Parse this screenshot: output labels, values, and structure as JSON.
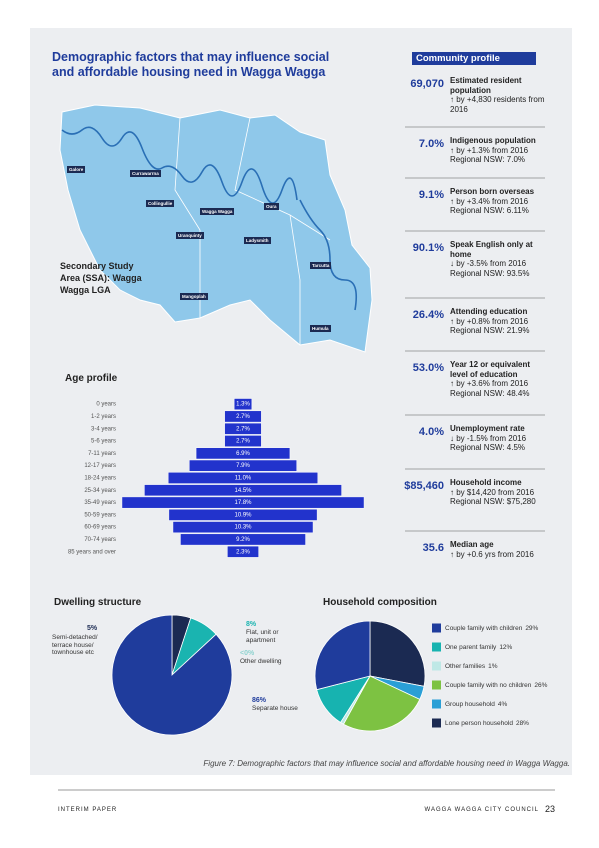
{
  "title": "Demographic factors that may influence social and affordable housing need in Wagga Wagga",
  "map": {
    "area_label": "Secondary Study Area (SSA): Wagga Wagga LGA",
    "places": [
      "Galore",
      "Currawarrna",
      "Collingullie",
      "Wagga Wagga",
      "Oura",
      "Uranquinty",
      "Ladysmith",
      "Tarcutta",
      "Mangoplah",
      "Humula"
    ]
  },
  "community_profile": {
    "title": "Community profile",
    "items": [
      {
        "value": "69,070",
        "label": "Estimated resident population",
        "details": [
          "↑ by +4,830 residents from 2016"
        ]
      },
      {
        "value": "7.0%",
        "label": "Indigenous population",
        "details": [
          "↑ by +1.3% from 2016",
          "Regional NSW: 7.0%"
        ]
      },
      {
        "value": "9.1%",
        "label": "Person born overseas",
        "details": [
          "↑ by +3.4% from 2016",
          "Regional NSW: 6.11%"
        ]
      },
      {
        "value": "90.1%",
        "label": "Speak English only at home",
        "details": [
          "↓ by -3.5% from 2016",
          "Regional NSW: 93.5%"
        ]
      },
      {
        "value": "26.4%",
        "label": "Attending education",
        "details": [
          "↑ by +0.8% from 2016",
          "Regional NSW: 21.9%"
        ]
      },
      {
        "value": "53.0%",
        "label": "Year 12 or equivalent level of education",
        "details": [
          "↑ by +3.6% from 2016",
          "Regional NSW: 48.4%"
        ]
      },
      {
        "value": "4.0%",
        "label": "Unemployment rate",
        "details": [
          "↓ by -1.5% from 2016",
          "Regional NSW: 4.5%"
        ]
      },
      {
        "value": "$85,460",
        "label": "Household income",
        "details": [
          "↑ by $14,420 from 2016 Regional NSW: $75,280"
        ]
      },
      {
        "value": "35.6",
        "label": "Median age",
        "details": [
          "↑ by +0.6 yrs from 2016"
        ]
      }
    ]
  },
  "chart_data": [
    {
      "type": "bar",
      "title": "Age profile",
      "color": "#2233cc",
      "categories": [
        "0 years",
        "1-2 years",
        "3-4 years",
        "5-6 years",
        "7-11 years",
        "12-17 years",
        "18-24 years",
        "25-34 years",
        "35-49 years",
        "50-59 years",
        "60-69 years",
        "70-74 years",
        "85 years and over"
      ],
      "values": [
        1.3,
        2.7,
        2.7,
        2.7,
        6.9,
        7.9,
        11.0,
        14.5,
        17.8,
        10.9,
        10.3,
        9.2,
        2.3
      ],
      "value_labels": [
        "1.3%",
        "2.7%",
        "2.7%",
        "2.7%",
        "6.9%",
        "7.9%",
        "11.0%",
        "14.5%",
        "17.8%",
        "10.9%",
        "10.3%",
        "9.2%",
        "2.3%"
      ]
    },
    {
      "type": "pie",
      "title": "Dwelling structure",
      "categories": [
        "Semi-detached/ terrace house/ townhouse etc",
        "Flat, unit or apartment",
        "Other dwelling",
        "Separate house"
      ],
      "values": [
        5,
        8,
        0,
        86
      ],
      "value_labels": [
        "5%",
        "8%",
        "<0%",
        "86%"
      ],
      "colors": [
        "#1b2a52",
        "#1ab4b0",
        "#8fd3d0",
        "#1f3c9c"
      ]
    },
    {
      "type": "pie",
      "title": "Household composition",
      "legend": "right",
      "categories": [
        "Couple family with children",
        "One parent family",
        "Other families",
        "Couple family with no children",
        "Group household",
        "Lone person household"
      ],
      "values": [
        29,
        12,
        1,
        26,
        4,
        28
      ],
      "value_labels": [
        "29%",
        "12%",
        "1%",
        "26%",
        "4%",
        "28%"
      ],
      "colors": [
        "#1f3c9c",
        "#17b3b0",
        "#bfe8e6",
        "#7dc242",
        "#2a9fd6",
        "#1b2a52"
      ]
    }
  ],
  "caption": "Figure 7: Demographic factors that may influence social and affordable housing need in Wagga Wagga.",
  "footer": {
    "left": "INTERIM PAPER",
    "right": "WAGGA WAGGA CITY COUNCIL",
    "page": "23"
  }
}
